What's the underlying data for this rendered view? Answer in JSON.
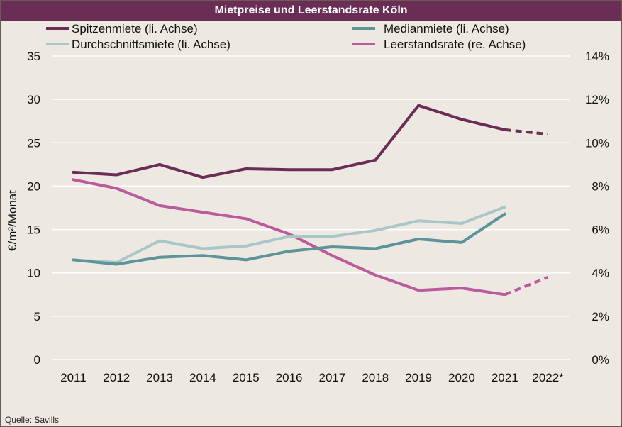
{
  "source": "Quelle: Savills",
  "chart_data": {
    "type": "line",
    "title": "Mietpreise und Leerstandsrate Köln",
    "categories": [
      "2011",
      "2012",
      "2013",
      "2014",
      "2015",
      "2016",
      "2017",
      "2018",
      "2019",
      "2020",
      "2021",
      "2022*"
    ],
    "ylabel": "€/m²/Monat",
    "ylim": [
      0,
      35
    ],
    "y_ticks": [
      "0",
      "5",
      "10",
      "15",
      "20",
      "25",
      "30",
      "35"
    ],
    "y2lim": [
      0,
      0.14
    ],
    "y2_ticks": [
      "0%",
      "2%",
      "4%",
      "6%",
      "8%",
      "10%",
      "12%",
      "14%"
    ],
    "grid": "horizontal",
    "legend_position": "top",
    "series": [
      {
        "name": "Spitzenmiete (li. Achse)",
        "axis": "left",
        "color": "#6a2d55",
        "values": [
          21.6,
          21.3,
          22.5,
          21.0,
          22.0,
          21.9,
          21.9,
          23.0,
          29.3,
          27.7,
          26.5,
          26.0
        ],
        "dashed_from": "2021"
      },
      {
        "name": "Medianmiete (li. Achse)",
        "axis": "left",
        "color": "#5d9499",
        "values": [
          11.5,
          11.0,
          11.8,
          12.0,
          11.5,
          12.5,
          13.0,
          12.8,
          13.9,
          13.5,
          16.8,
          null
        ]
      },
      {
        "name": "Durchschnittsmiete (li. Achse)",
        "axis": "left",
        "color": "#a9c6c8",
        "values": [
          11.5,
          11.2,
          13.7,
          12.8,
          13.1,
          14.2,
          14.2,
          14.9,
          16.0,
          15.7,
          17.6,
          null
        ]
      },
      {
        "name": "Leerstandsrate (re. Achse)",
        "axis": "right",
        "color": "#bb5b9c",
        "values": [
          0.083,
          0.079,
          0.071,
          0.068,
          0.065,
          0.058,
          0.048,
          0.039,
          0.032,
          0.033,
          0.03,
          0.038
        ],
        "dashed_from": "2021"
      }
    ]
  }
}
